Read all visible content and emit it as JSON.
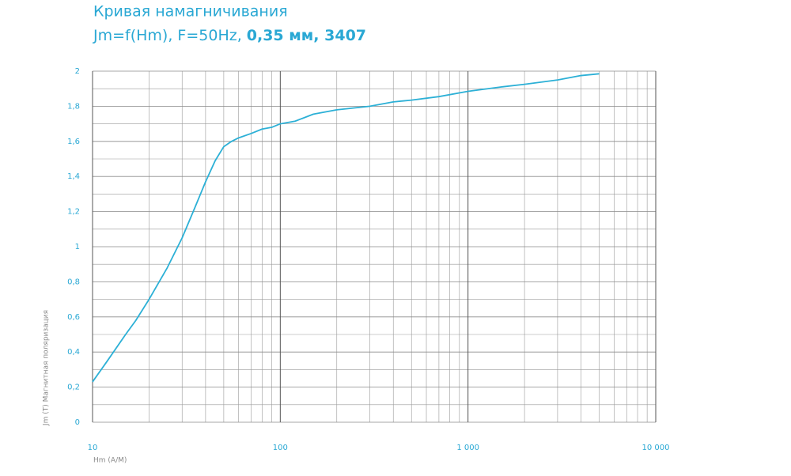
{
  "chart_data": {
    "type": "line",
    "title": "Кривая намагничивания",
    "subtitle": [
      "Jm=f(Hm), F=50Hz,",
      "0,35 мм, 3407"
    ],
    "x_label": "Hm (A/M)",
    "y_label": "Jm (T) Магнитная поляризация",
    "x": [
      10,
      12,
      15,
      17,
      20,
      25,
      30,
      35,
      40,
      45,
      50,
      55,
      60,
      70,
      80,
      90,
      100,
      120,
      150,
      200,
      300,
      400,
      500,
      700,
      1000,
      1500,
      2000,
      3000,
      4000,
      5000
    ],
    "series": [
      {
        "name": "Jm",
        "color": "#2cb0d6",
        "values": [
          0.23,
          0.35,
          0.5,
          0.58,
          0.7,
          0.88,
          1.05,
          1.22,
          1.37,
          1.49,
          1.57,
          1.6,
          1.62,
          1.645,
          1.67,
          1.68,
          1.7,
          1.715,
          1.755,
          1.78,
          1.8,
          1.825,
          1.835,
          1.855,
          1.885,
          1.91,
          1.925,
          1.95,
          1.975,
          1.985
        ]
      }
    ],
    "x_scale": "log",
    "xlim": [
      10,
      10000
    ],
    "xticks": [
      10,
      100,
      {
        "value": 1000,
        "label": "1 000"
      },
      {
        "value": 10000,
        "label": "10 000"
      }
    ],
    "ylim": [
      0,
      2
    ],
    "yticks": [
      0,
      {
        "value": 0.2,
        "label": "0,2"
      },
      {
        "value": 0.4,
        "label": "0,4"
      },
      {
        "value": 0.6,
        "label": "0,6"
      },
      {
        "value": 0.8,
        "label": "0,8"
      },
      1,
      {
        "value": 1.2,
        "label": "1,2"
      },
      {
        "value": 1.4,
        "label": "1,4"
      },
      {
        "value": 1.6,
        "label": "1,6"
      },
      {
        "value": 1.8,
        "label": "1,8"
      },
      2
    ],
    "grid": true,
    "minor_grid": true
  }
}
